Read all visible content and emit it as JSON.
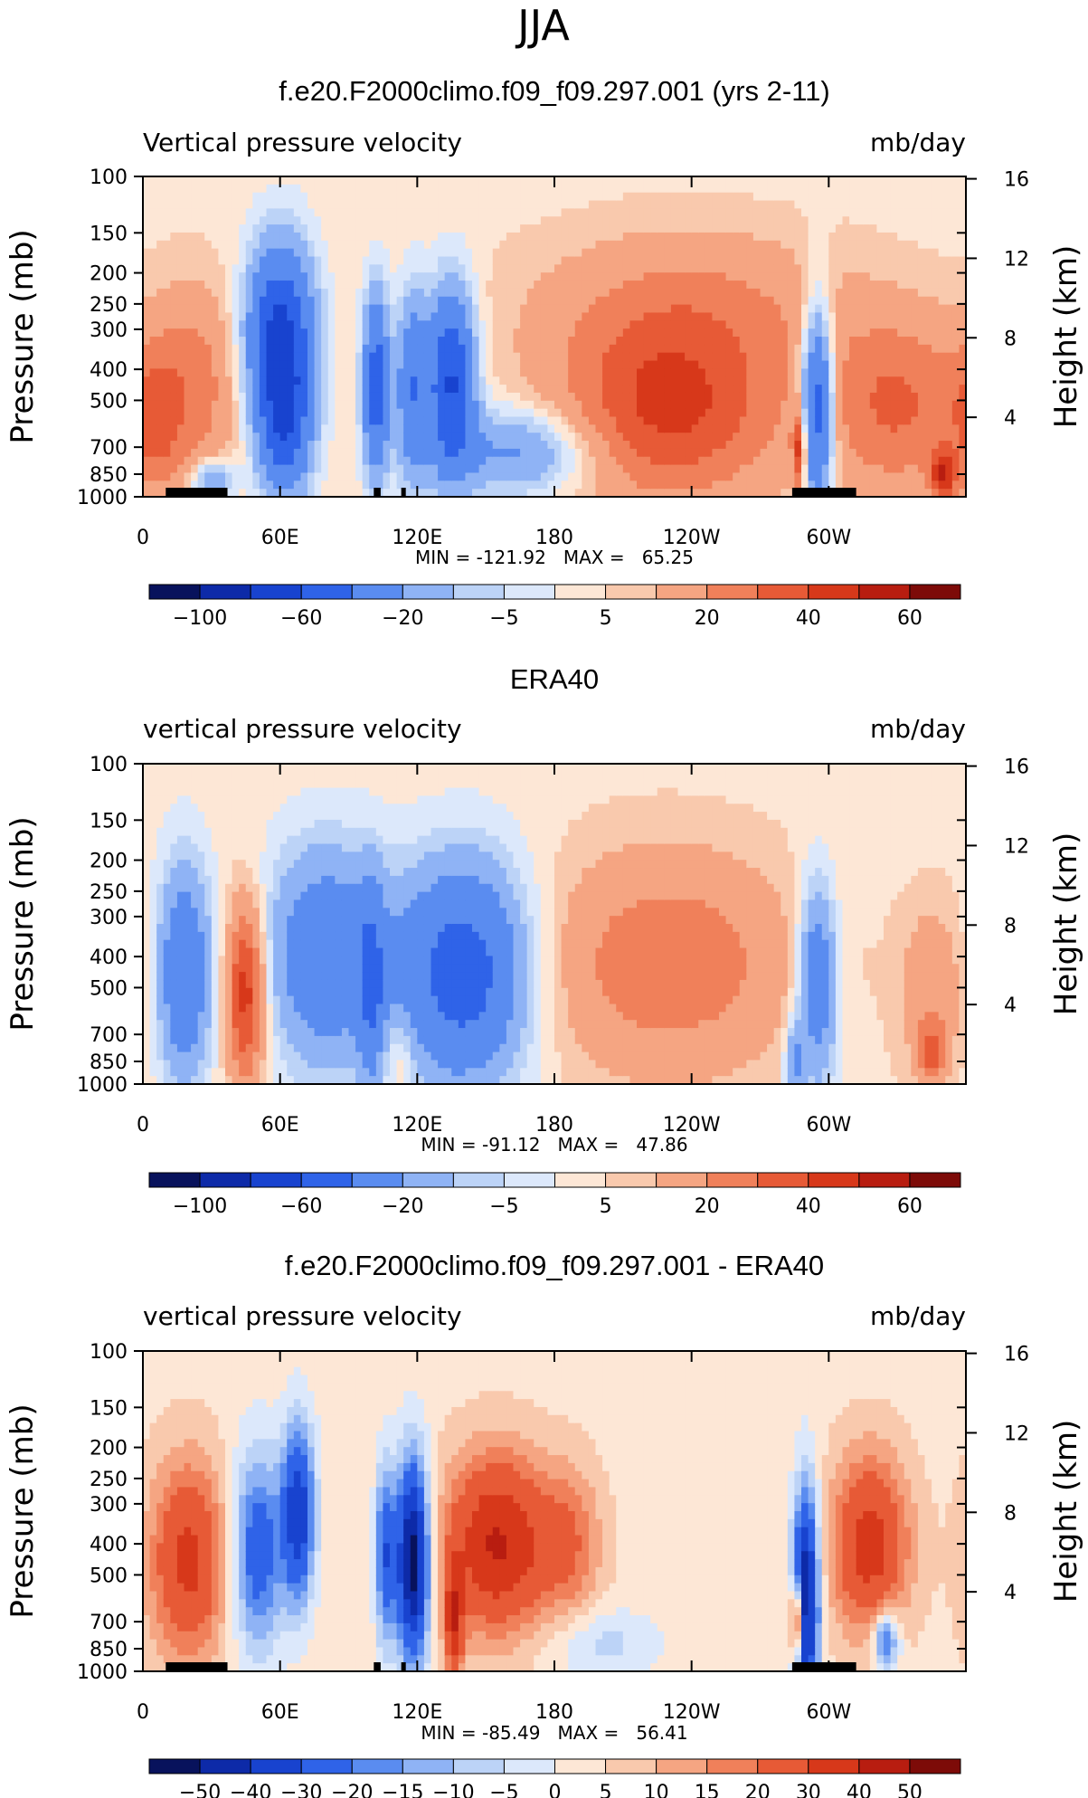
{
  "page": {
    "super_title": "JJA"
  },
  "chart_data": [
    {
      "type": "heatmap",
      "title": "f.e20.F2000climo.f09_f09.297.001 (yrs 2-11)",
      "left_label": "Vertical pressure velocity",
      "right_label": "mb/day",
      "ylabel": "Pressure (mb)",
      "ylabel_right": "Height (km)",
      "x_ticks": [
        "0",
        "60E",
        "120E",
        "180",
        "120W",
        "60W"
      ],
      "x_tick_values": [
        0,
        60,
        120,
        180,
        240,
        300
      ],
      "xlim": [
        0,
        360
      ],
      "y_ticks": [
        "100",
        "150",
        "200",
        "250",
        "300",
        "400",
        "500",
        "700",
        "850",
        "1000"
      ],
      "y_tick_values": [
        100,
        150,
        200,
        250,
        300,
        400,
        500,
        700,
        850,
        1000
      ],
      "ylim": [
        1000,
        100
      ],
      "y_scale": "log",
      "y_right_ticks": [
        "4",
        "8",
        "12",
        "16"
      ],
      "y_right_tick_values": [
        4,
        8,
        12,
        16
      ],
      "stats": "MIN = -121.92   MAX =   65.25",
      "colorbar": {
        "colors": [
          "#08125c",
          "#0d2aa8",
          "#1843cf",
          "#2f63e8",
          "#5a8cf0",
          "#8fb3f5",
          "#bcd3f7",
          "#dce8fb",
          "#fde7d6",
          "#f9c9ad",
          "#f5a582",
          "#f0805a",
          "#e75a36",
          "#d7381a",
          "#b81d10",
          "#7d0b08"
        ],
        "labels": [
          "-100",
          "-60",
          "-20",
          "-5",
          "5",
          "20",
          "40",
          "60"
        ],
        "label_positions": [
          1,
          3,
          5,
          7,
          9,
          11,
          13,
          15
        ]
      },
      "terrain_lon": [
        [
          10,
          37
        ],
        [
          101,
          104
        ],
        [
          113,
          115
        ],
        [
          284,
          312
        ]
      ],
      "features": [
        {
          "lon": 60,
          "p": 320,
          "v": -70,
          "sx": 10,
          "sy": 0.45
        },
        {
          "lon": 62,
          "p": 620,
          "v": -45,
          "sx": 8,
          "sy": 0.35
        },
        {
          "lon": 102,
          "p": 450,
          "v": -55,
          "sx": 4,
          "sy": 0.45
        },
        {
          "lon": 118,
          "p": 450,
          "v": -40,
          "sx": 5,
          "sy": 0.45
        },
        {
          "lon": 135,
          "p": 430,
          "v": -65,
          "sx": 7,
          "sy": 0.45
        },
        {
          "lon": 165,
          "p": 720,
          "v": -28,
          "sx": 24,
          "sy": 0.22
        },
        {
          "lon": 30,
          "p": 880,
          "v": -25,
          "sx": 7,
          "sy": 0.1
        },
        {
          "lon": 22,
          "p": 450,
          "v": 22,
          "sx": 14,
          "sy": 0.5
        },
        {
          "lon": 5,
          "p": 600,
          "v": 20,
          "sx": 8,
          "sy": 0.35
        },
        {
          "lon": 230,
          "p": 550,
          "v": 38,
          "sx": 34,
          "sy": 0.45
        },
        {
          "lon": 240,
          "p": 260,
          "v": 18,
          "sx": 48,
          "sy": 0.4
        },
        {
          "lon": 295,
          "p": 520,
          "v": -62,
          "sx": 5,
          "sy": 0.5
        },
        {
          "lon": 287,
          "p": 720,
          "v": 40,
          "sx": 2,
          "sy": 0.2
        },
        {
          "lon": 330,
          "p": 520,
          "v": 28,
          "sx": 22,
          "sy": 0.45
        },
        {
          "lon": 350,
          "p": 850,
          "v": 40,
          "sx": 4,
          "sy": 0.12
        }
      ]
    },
    {
      "type": "heatmap",
      "title": "ERA40",
      "left_label": "vertical pressure velocity",
      "right_label": "mb/day",
      "ylabel": "Pressure (mb)",
      "ylabel_right": "Height (km)",
      "x_ticks": [
        "0",
        "60E",
        "120E",
        "180",
        "120W",
        "60W"
      ],
      "x_tick_values": [
        0,
        60,
        120,
        180,
        240,
        300
      ],
      "xlim": [
        0,
        360
      ],
      "y_ticks": [
        "100",
        "150",
        "200",
        "250",
        "300",
        "400",
        "500",
        "700",
        "850",
        "1000"
      ],
      "y_tick_values": [
        100,
        150,
        200,
        250,
        300,
        400,
        500,
        700,
        850,
        1000
      ],
      "ylim": [
        1000,
        100
      ],
      "y_scale": "log",
      "y_right_ticks": [
        "4",
        "8",
        "12",
        "16"
      ],
      "y_right_tick_values": [
        4,
        8,
        12,
        16
      ],
      "stats": "MIN = -91.12   MAX =   47.86",
      "colorbar": {
        "colors": [
          "#08125c",
          "#0d2aa8",
          "#1843cf",
          "#2f63e8",
          "#5a8cf0",
          "#8fb3f5",
          "#bcd3f7",
          "#dce8fb",
          "#fde7d6",
          "#f9c9ad",
          "#f5a582",
          "#f0805a",
          "#e75a36",
          "#d7381a",
          "#b81d10",
          "#7d0b08"
        ],
        "labels": [
          "-100",
          "-60",
          "-20",
          "-5",
          "5",
          "20",
          "40",
          "60"
        ],
        "label_positions": [
          1,
          3,
          5,
          7,
          9,
          11,
          13,
          15
        ]
      },
      "terrain_lon": [],
      "features": [
        {
          "lon": 18,
          "p": 450,
          "v": -40,
          "sx": 8,
          "sy": 0.55
        },
        {
          "lon": 45,
          "p": 520,
          "v": 45,
          "sx": 6,
          "sy": 0.45
        },
        {
          "lon": 80,
          "p": 400,
          "v": -38,
          "sx": 18,
          "sy": 0.55
        },
        {
          "lon": 100,
          "p": 500,
          "v": -30,
          "sx": 4,
          "sy": 0.5
        },
        {
          "lon": 140,
          "p": 450,
          "v": -55,
          "sx": 20,
          "sy": 0.55
        },
        {
          "lon": 112,
          "p": 800,
          "v": 12,
          "sx": 5,
          "sy": 0.2
        },
        {
          "lon": 230,
          "p": 420,
          "v": 25,
          "sx": 38,
          "sy": 0.55
        },
        {
          "lon": 295,
          "p": 480,
          "v": -40,
          "sx": 6,
          "sy": 0.5
        },
        {
          "lon": 285,
          "p": 850,
          "v": -25,
          "sx": 3,
          "sy": 0.2
        },
        {
          "lon": 345,
          "p": 520,
          "v": 15,
          "sx": 10,
          "sy": 0.45
        },
        {
          "lon": 345,
          "p": 800,
          "v": 25,
          "sx": 4,
          "sy": 0.15
        }
      ]
    },
    {
      "type": "heatmap",
      "title": "f.e20.F2000climo.f09_f09.297.001 - ERA40",
      "left_label": "vertical pressure velocity",
      "right_label": "mb/day",
      "ylabel": "Pressure (mb)",
      "ylabel_right": "Height (km)",
      "x_ticks": [
        "0",
        "60E",
        "120E",
        "180",
        "120W",
        "60W"
      ],
      "x_tick_values": [
        0,
        60,
        120,
        180,
        240,
        300
      ],
      "xlim": [
        0,
        360
      ],
      "y_ticks": [
        "100",
        "150",
        "200",
        "250",
        "300",
        "400",
        "500",
        "700",
        "850",
        "1000"
      ],
      "y_tick_values": [
        100,
        150,
        200,
        250,
        300,
        400,
        500,
        700,
        850,
        1000
      ],
      "ylim": [
        1000,
        100
      ],
      "y_scale": "log",
      "y_right_ticks": [
        "4",
        "8",
        "12",
        "16"
      ],
      "y_right_tick_values": [
        4,
        8,
        12,
        16
      ],
      "stats": "MIN = -85.49   MAX =   56.41",
      "colorbar": {
        "colors": [
          "#08125c",
          "#0d2aa8",
          "#1843cf",
          "#2f63e8",
          "#5a8cf0",
          "#8fb3f5",
          "#bcd3f7",
          "#dce8fb",
          "#fde7d6",
          "#f9c9ad",
          "#f5a582",
          "#f0805a",
          "#e75a36",
          "#d7381a",
          "#b81d10",
          "#7d0b08"
        ],
        "labels": [
          "-50",
          "-40",
          "-30",
          "-20",
          "-15",
          "-10",
          "-5",
          "0",
          "5",
          "10",
          "15",
          "20",
          "30",
          "40",
          "50"
        ],
        "label_positions": [
          1,
          2,
          3,
          4,
          5,
          6,
          7,
          8,
          9,
          10,
          11,
          12,
          13,
          14,
          15
        ]
      },
      "terrain_lon": [
        [
          10,
          37
        ],
        [
          101,
          104
        ],
        [
          113,
          115
        ],
        [
          284,
          312
        ]
      ],
      "features": [
        {
          "lon": 20,
          "p": 450,
          "v": 30,
          "sx": 12,
          "sy": 0.5
        },
        {
          "lon": 50,
          "p": 420,
          "v": -30,
          "sx": 8,
          "sy": 0.5
        },
        {
          "lon": 68,
          "p": 320,
          "v": -40,
          "sx": 5,
          "sy": 0.45
        },
        {
          "lon": 118,
          "p": 450,
          "v": -60,
          "sx": 5,
          "sy": 0.5
        },
        {
          "lon": 106,
          "p": 430,
          "v": -30,
          "sx": 3,
          "sy": 0.45
        },
        {
          "lon": 155,
          "p": 400,
          "v": 38,
          "sx": 16,
          "sy": 0.45
        },
        {
          "lon": 187,
          "p": 400,
          "v": 15,
          "sx": 10,
          "sy": 0.4
        },
        {
          "lon": 136,
          "p": 700,
          "v": 30,
          "sx": 3,
          "sy": 0.3
        },
        {
          "lon": 290,
          "p": 600,
          "v": -55,
          "sx": 4,
          "sy": 0.55
        },
        {
          "lon": 286,
          "p": 700,
          "v": 45,
          "sx": 2,
          "sy": 0.2
        },
        {
          "lon": 318,
          "p": 400,
          "v": 32,
          "sx": 12,
          "sy": 0.45
        },
        {
          "lon": 325,
          "p": 800,
          "v": -30,
          "sx": 4,
          "sy": 0.15
        },
        {
          "lon": 200,
          "p": 820,
          "v": -10,
          "sx": 18,
          "sy": 0.18
        }
      ]
    }
  ]
}
